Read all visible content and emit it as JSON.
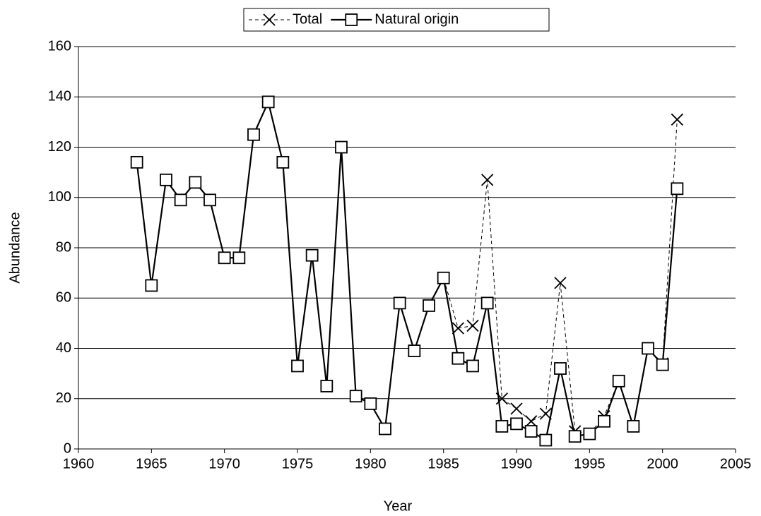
{
  "chart_data": {
    "type": "line",
    "x_label": "Year",
    "y_label": "Abundance",
    "x": [
      1964,
      1965,
      1966,
      1967,
      1968,
      1969,
      1970,
      1971,
      1972,
      1973,
      1974,
      1975,
      1976,
      1977,
      1978,
      1979,
      1980,
      1981,
      1982,
      1983,
      1984,
      1985,
      1986,
      1987,
      1988,
      1989,
      1990,
      1991,
      1992,
      1993,
      1994,
      1995,
      1996,
      1997,
      1998,
      1999,
      2000,
      2001
    ],
    "series": [
      {
        "name": "Total",
        "color": "#000000",
        "line_style": "dashed",
        "marker": "x",
        "values": [
          114,
          65,
          107,
          99,
          106,
          99,
          76,
          76,
          125,
          138,
          114,
          33,
          77,
          25,
          120,
          21,
          18,
          8,
          58,
          39,
          57,
          68,
          48,
          49,
          107,
          20,
          16,
          11,
          14,
          66,
          7,
          6,
          13,
          27,
          9,
          40,
          34,
          131
        ]
      },
      {
        "name": "Natural origin",
        "color": "#000000",
        "line_style": "solid",
        "marker": "square",
        "values": [
          114,
          65,
          107,
          99,
          106,
          99,
          76,
          76,
          125,
          138,
          114,
          33,
          77,
          25,
          120,
          21,
          18,
          8,
          58,
          39,
          57,
          68,
          36,
          33,
          58,
          9,
          10,
          7,
          3.5,
          32,
          5,
          6,
          11,
          27,
          9,
          40,
          33.5,
          103.5
        ]
      }
    ],
    "xlim": [
      1960,
      2005
    ],
    "xticks": [
      1960,
      1965,
      1970,
      1975,
      1980,
      1985,
      1990,
      1995,
      2000,
      2005
    ],
    "ylim": [
      0,
      160
    ],
    "yticks": [
      0,
      20,
      40,
      60,
      80,
      100,
      120,
      140,
      160
    ],
    "grid": true,
    "legend": "top"
  }
}
